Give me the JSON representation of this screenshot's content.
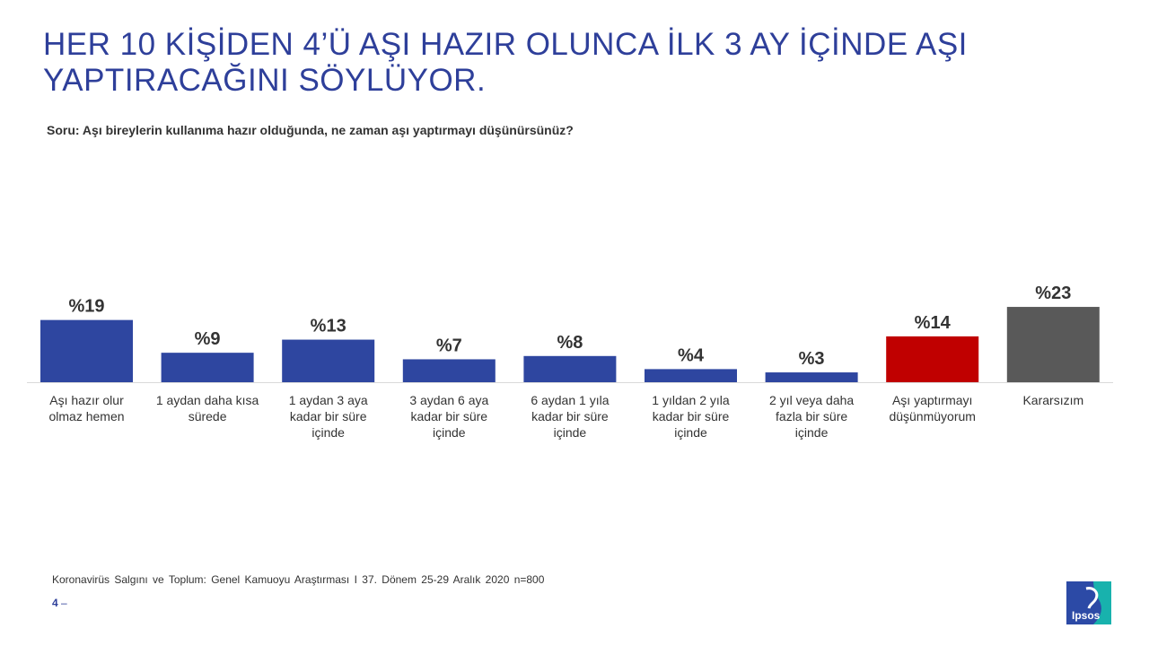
{
  "slide": {
    "title_line1": "HER 10 KİŞİDEN 4’Ü AŞI HAZIR OLUNCA İLK 3 AY İÇİNDE AŞI",
    "title_line2": "YAPTIRACAĞINI SÖYLÜYOR.",
    "question": "Soru: Aşı bireylerin kullanıma hazır olduğunda, ne zaman aşı yaptırmayı düşünürsünüz?",
    "source": "Koronavirüs Salgını ve Toplum: Genel Kamuoyu Araştırması I 37. Dönem 25-29 Aralık 2020   n=800",
    "page_number": "4",
    "page_dash": "–",
    "logo_text": "Ipsos"
  },
  "colors": {
    "title": "#2e3f9a",
    "bar_default": "#2e46a0",
    "bar_no": "#c00000",
    "bar_undecided": "#595959",
    "logo": "#2c4aa6",
    "logo_accent": "#18b2ad"
  },
  "chart_data": {
    "type": "bar",
    "title": "",
    "xlabel": "",
    "ylabel": "",
    "ylim": [
      0,
      23
    ],
    "categories": [
      [
        "Aşı hazır olur",
        "olmaz hemen"
      ],
      [
        "1 aydan daha kısa",
        "sürede"
      ],
      [
        "1 aydan 3 aya",
        "kadar bir süre",
        "içinde"
      ],
      [
        "3 aydan 6 aya",
        "kadar bir süre",
        "içinde"
      ],
      [
        "6 aydan 1 yıla",
        "kadar bir süre",
        "içinde"
      ],
      [
        "1 yıldan 2 yıla",
        "kadar bir süre",
        "içinde"
      ],
      [
        "2 yıl veya daha",
        "fazla bir süre",
        "içinde"
      ],
      [
        "Aşı yaptırmayı",
        "düşünmüyorum"
      ],
      [
        "Kararsızım"
      ]
    ],
    "values": [
      19,
      9,
      13,
      7,
      8,
      4,
      3,
      14,
      23
    ],
    "value_labels": [
      "%19",
      "%9",
      "%13",
      "%7",
      "%8",
      "%4",
      "%3",
      "%14",
      "%23"
    ],
    "bar_colors": [
      "bar_default",
      "bar_default",
      "bar_default",
      "bar_default",
      "bar_default",
      "bar_default",
      "bar_default",
      "bar_no",
      "bar_undecided"
    ]
  }
}
